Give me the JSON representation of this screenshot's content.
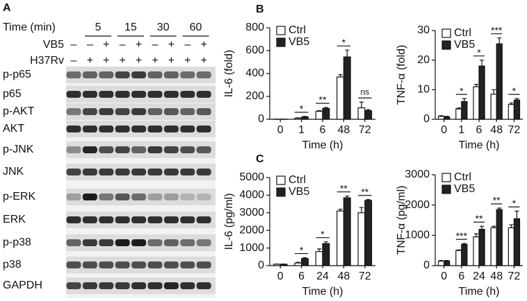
{
  "panels": [
    "A",
    "B",
    "C"
  ],
  "blot": {
    "time_label": "Time (min)",
    "times": [
      "5",
      "15",
      "30",
      "60"
    ],
    "vb5_label": "VB5",
    "h37rv_label": "H37Rv",
    "vb5_signs": [
      "–",
      "–",
      "+",
      "–",
      "+",
      "–",
      "+",
      "–",
      "+"
    ],
    "h37rv_signs": [
      "–",
      "+",
      "+",
      "+",
      "+",
      "+",
      "+",
      "+",
      "+"
    ],
    "proteins": [
      "p-p65",
      "p65",
      "p-AKT",
      "AKT",
      "p-JNK",
      "JNK",
      "p-ERK",
      "ERK",
      "p-p38",
      "p38",
      "GAPDH"
    ]
  },
  "chart_data": [
    {
      "type": "bar",
      "y_label": "IL-6 (fold)",
      "x_label": "Time (h)",
      "categories": [
        "0",
        "1",
        "6",
        "48",
        "72"
      ],
      "series": [
        {
          "name": "Ctrl",
          "color": "#ffffff",
          "values": [
            1,
            10,
            70,
            370,
            100
          ],
          "errors": [
            0,
            3,
            5,
            20,
            50
          ]
        },
        {
          "name": "VB5",
          "color": "#222222",
          "values": [
            1,
            20,
            95,
            545,
            75
          ],
          "errors": [
            0,
            5,
            8,
            60,
            10
          ]
        }
      ],
      "significance": [
        null,
        "*",
        "**",
        "*",
        "ns"
      ],
      "ylim": [
        0,
        800
      ],
      "yticks": [
        0,
        200,
        400,
        600,
        800
      ]
    },
    {
      "type": "bar",
      "y_label": "TNF-α (fold)",
      "x_label": "Time (h)",
      "categories": [
        "0",
        "1",
        "6",
        "48",
        "72"
      ],
      "series": [
        {
          "name": "Ctrl",
          "color": "#ffffff",
          "values": [
            1,
            3.5,
            11,
            8.5,
            5
          ],
          "errors": [
            0.2,
            0.3,
            0.8,
            1.5,
            0.5
          ]
        },
        {
          "name": "VB5",
          "color": "#222222",
          "values": [
            0.8,
            6,
            18,
            25.5,
            6.5
          ],
          "errors": [
            0.2,
            1,
            2,
            2,
            0.5
          ]
        }
      ],
      "significance": [
        null,
        "*",
        "*",
        "***",
        "*"
      ],
      "ylim": [
        0,
        30
      ],
      "yticks": [
        0,
        10,
        20,
        30
      ]
    },
    {
      "type": "bar",
      "y_label": "IL-6 (pg/ml)",
      "x_label": "Time (h)",
      "categories": [
        "0",
        "6",
        "24",
        "48",
        "72"
      ],
      "series": [
        {
          "name": "Ctrl",
          "color": "#ffffff",
          "values": [
            80,
            150,
            800,
            3100,
            3000
          ],
          "errors": [
            10,
            40,
            150,
            100,
            300
          ]
        },
        {
          "name": "VB5",
          "color": "#222222",
          "values": [
            80,
            400,
            1250,
            3850,
            3700
          ],
          "errors": [
            10,
            50,
            100,
            100,
            50
          ]
        }
      ],
      "significance": [
        null,
        "*",
        "*",
        "**",
        "**"
      ],
      "ylim": [
        0,
        5000
      ],
      "yticks": [
        0,
        1000,
        2000,
        3000,
        4000,
        5000
      ]
    },
    {
      "type": "bar",
      "y_label": "TNF-α (pg/ml)",
      "x_label": "Time (h)",
      "categories": [
        "0",
        "6",
        "24",
        "48",
        "72"
      ],
      "series": [
        {
          "name": "Ctrl",
          "color": "#ffffff",
          "values": [
            150,
            500,
            950,
            1250,
            1250
          ],
          "errors": [
            20,
            20,
            100,
            50,
            100
          ]
        },
        {
          "name": "VB5",
          "color": "#222222",
          "values": [
            150,
            700,
            1200,
            1850,
            1550
          ],
          "errors": [
            20,
            30,
            100,
            50,
            250
          ]
        }
      ],
      "significance": [
        null,
        "***",
        "**",
        "**",
        "*"
      ],
      "ylim": [
        0,
        3000
      ],
      "yticks": [
        0,
        1000,
        2000,
        3000
      ]
    }
  ]
}
